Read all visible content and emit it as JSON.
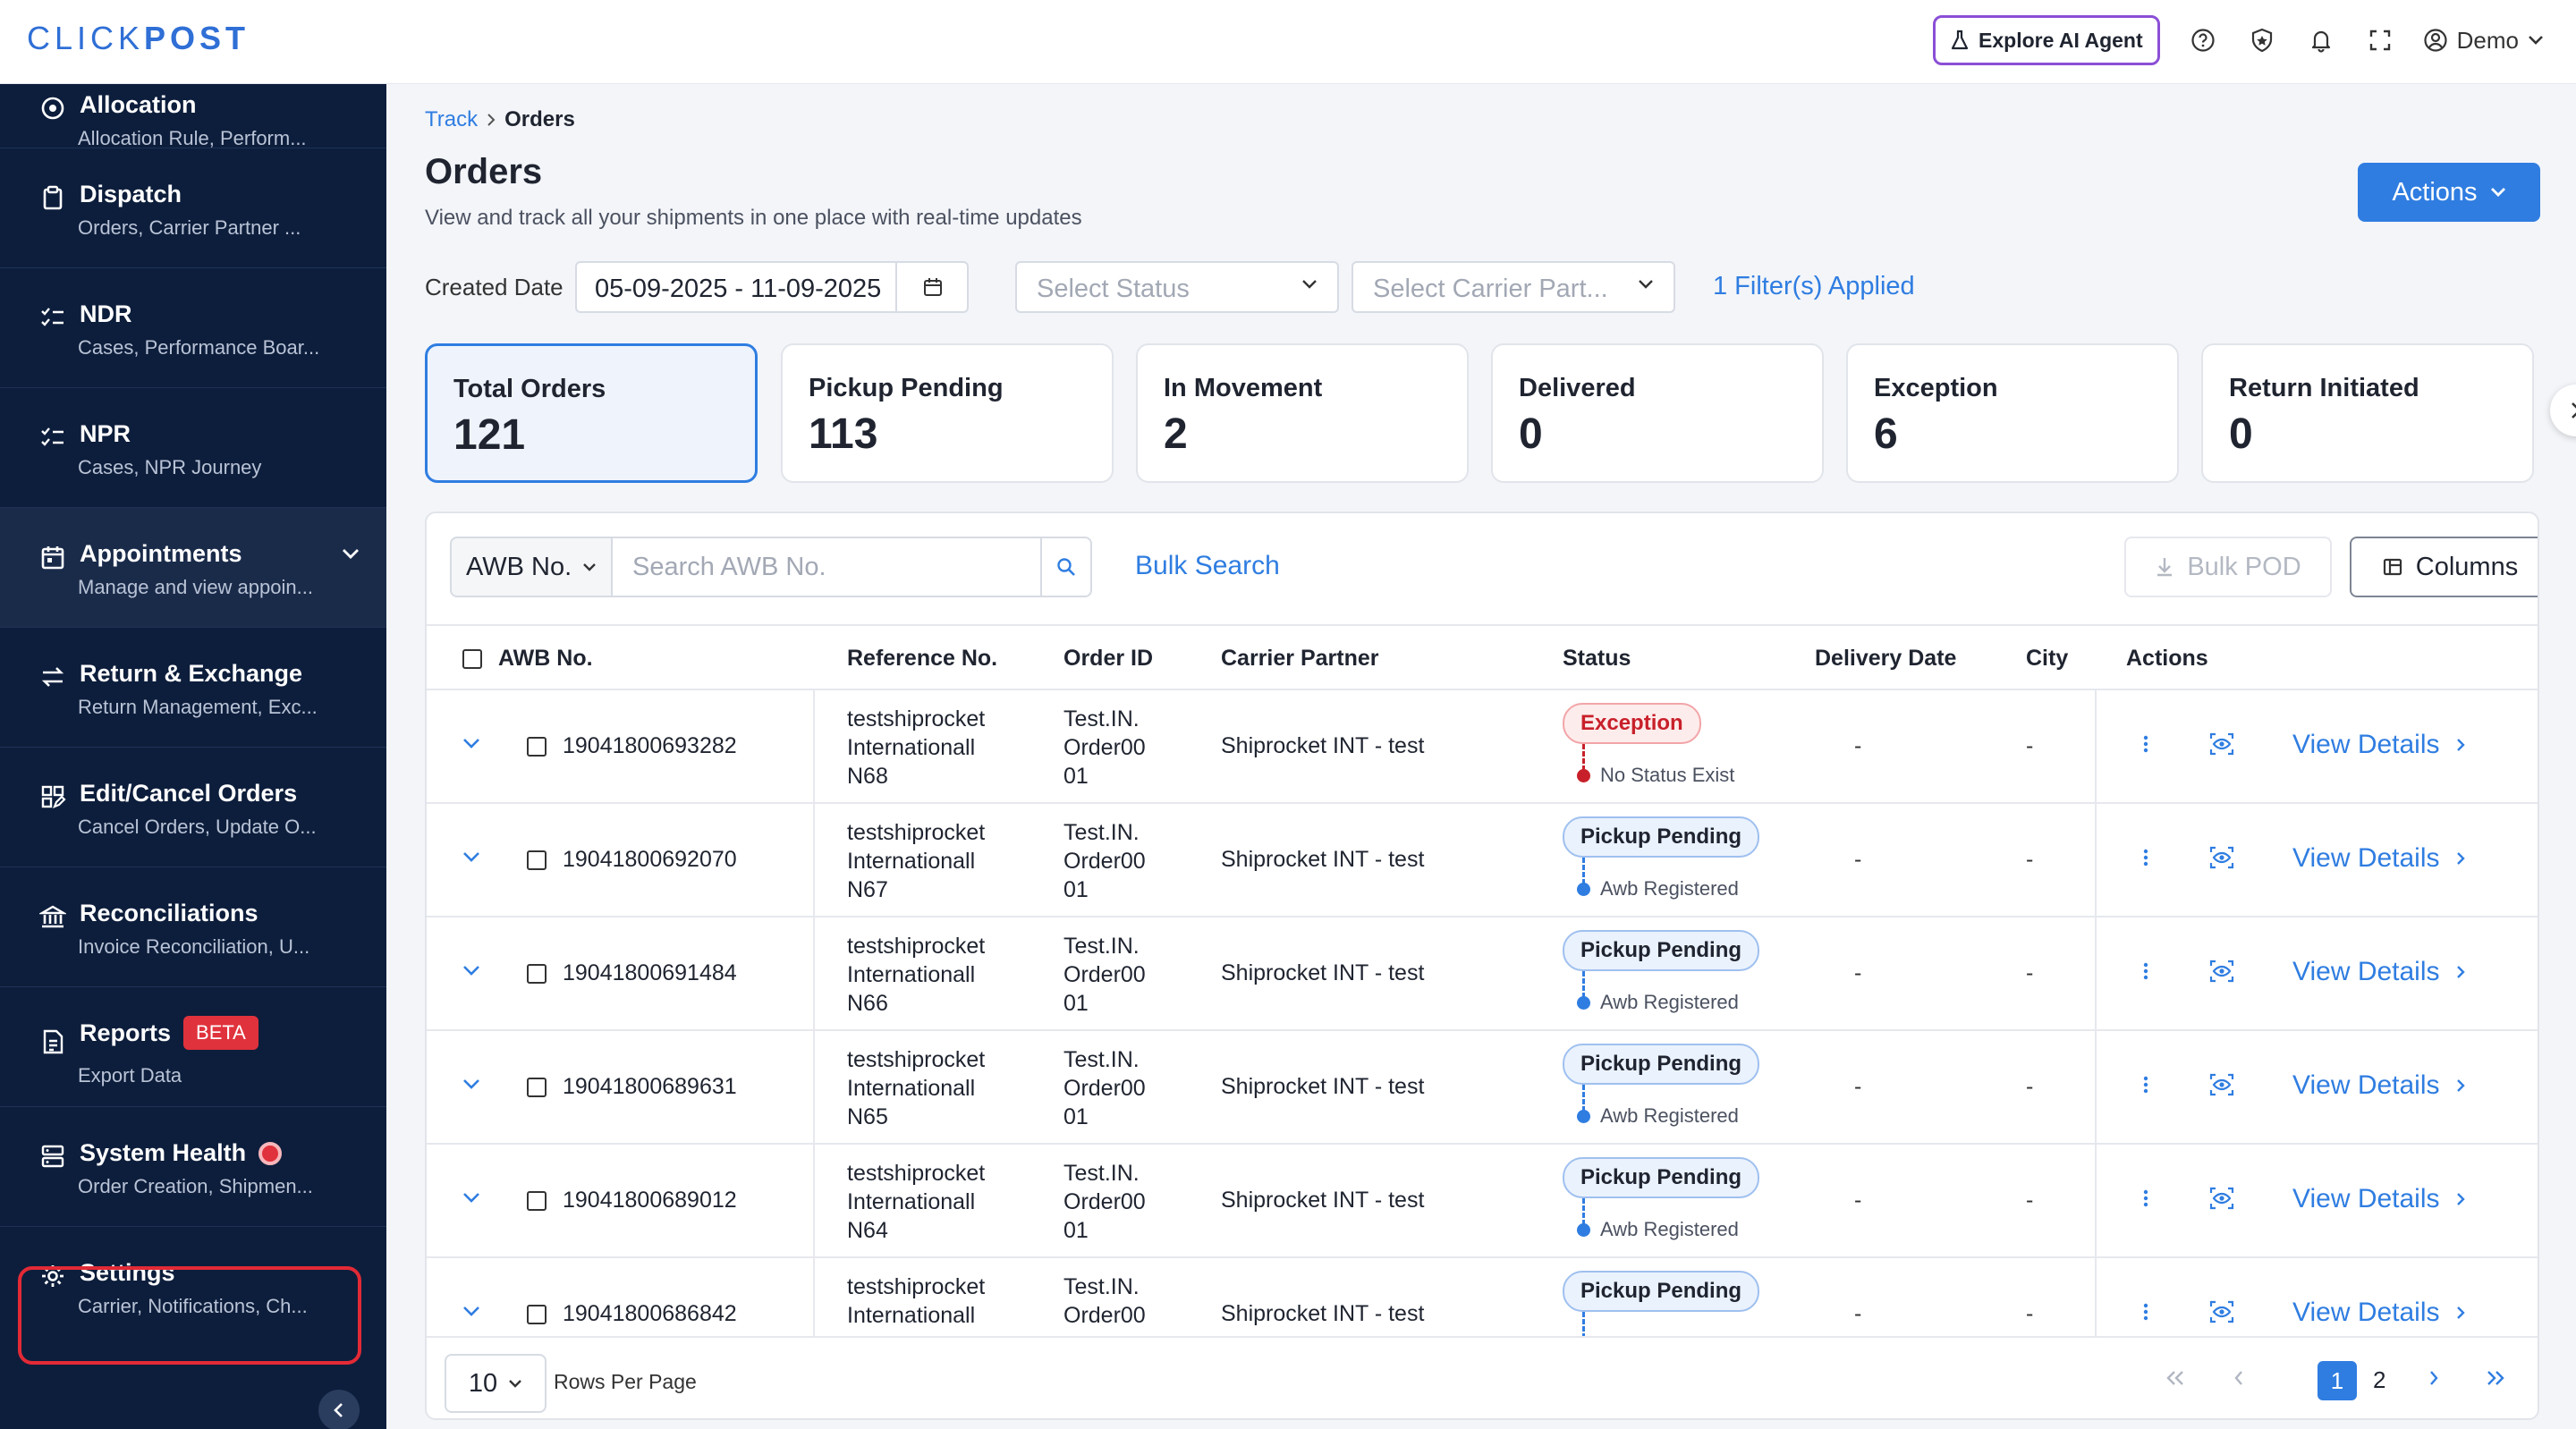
{
  "brand": {
    "logo_light": "CLICK",
    "logo_bold": "POST"
  },
  "topbar": {
    "ai_agent_label": "Explore AI Agent",
    "user_label": "Demo",
    "icons": [
      "help-icon",
      "shield-icon",
      "bell-icon",
      "fullscreen-icon",
      "user-circle-icon"
    ]
  },
  "sidebar": {
    "items": [
      {
        "title": "Allocation",
        "subtitle": "Allocation Rule, Perform...",
        "icon": "target-icon"
      },
      {
        "title": "Dispatch",
        "subtitle": "Orders, Carrier Partner ...",
        "icon": "clipboard-icon"
      },
      {
        "title": "NDR",
        "subtitle": "Cases, Performance Boar...",
        "icon": "list-check-icon"
      },
      {
        "title": "NPR",
        "subtitle": "Cases, NPR Journey",
        "icon": "list-check-icon"
      },
      {
        "title": "Appointments",
        "subtitle": "Manage and view appoin...",
        "icon": "calendar-icon"
      },
      {
        "title": "Return & Exchange",
        "subtitle": "Return Management, Exc...",
        "icon": "swap-icon"
      },
      {
        "title": "Edit/Cancel Orders",
        "subtitle": "Cancel Orders, Update O...",
        "icon": "edit-grid-icon"
      },
      {
        "title": "Reconciliations",
        "subtitle": "Invoice Reconciliation, U...",
        "icon": "bank-icon"
      },
      {
        "title": "Reports",
        "subtitle": "Export Data",
        "badge": "BETA",
        "icon": "report-icon"
      },
      {
        "title": "System Health",
        "subtitle": "Order Creation, Shipmen...",
        "icon": "server-icon"
      },
      {
        "title": "Settings",
        "subtitle": "Carrier, Notifications, Ch...",
        "icon": "gear-icon"
      }
    ]
  },
  "breadcrumb": {
    "parent": "Track",
    "current": "Orders"
  },
  "page": {
    "title": "Orders",
    "subtitle": "View and track all your shipments in one place with real-time updates",
    "actions_label": "Actions"
  },
  "filters": {
    "created_date_label": "Created Date",
    "date_range": "05-09-2025 - 11-09-2025",
    "status_placeholder": "Select Status",
    "carrier_placeholder": "Select Carrier Part...",
    "applied_text": "1 Filter(s) Applied"
  },
  "summary_cards": [
    {
      "label": "Total Orders",
      "value": "121"
    },
    {
      "label": "Pickup Pending",
      "value": "113"
    },
    {
      "label": "In Movement",
      "value": "2"
    },
    {
      "label": "Delivered",
      "value": "0"
    },
    {
      "label": "Exception",
      "value": "6"
    },
    {
      "label": "Return Initiated",
      "value": "0"
    }
  ],
  "search": {
    "field_label": "AWB No.",
    "placeholder": "Search AWB No.",
    "bulk_search_label": "Bulk Search",
    "bulk_pod_label": "Bulk POD",
    "columns_label": "Columns"
  },
  "table": {
    "headers": [
      "AWB No.",
      "Reference No.",
      "Order ID",
      "Carrier Partner",
      "Status",
      "Delivery Date",
      "City",
      "Actions"
    ],
    "view_details_label": "View Details",
    "rows": [
      {
        "awb": "19041800693282",
        "ref": [
          "testshiprocket",
          "Internationall",
          "N68"
        ],
        "order_id": [
          "Test.IN.",
          "Order00",
          "01"
        ],
        "carrier": "Shiprocket INT - test",
        "status": "Exception",
        "sub_status": "No Status Exist",
        "delivery_date": "-",
        "city": "-"
      },
      {
        "awb": "19041800692070",
        "ref": [
          "testshiprocket",
          "Internationall",
          "N67"
        ],
        "order_id": [
          "Test.IN.",
          "Order00",
          "01"
        ],
        "carrier": "Shiprocket INT - test",
        "status": "Pickup Pending",
        "sub_status": "Awb Registered",
        "delivery_date": "-",
        "city": "-"
      },
      {
        "awb": "19041800691484",
        "ref": [
          "testshiprocket",
          "Internationall",
          "N66"
        ],
        "order_id": [
          "Test.IN.",
          "Order00",
          "01"
        ],
        "carrier": "Shiprocket INT - test",
        "status": "Pickup Pending",
        "sub_status": "Awb Registered",
        "delivery_date": "-",
        "city": "-"
      },
      {
        "awb": "19041800689631",
        "ref": [
          "testshiprocket",
          "Internationall",
          "N65"
        ],
        "order_id": [
          "Test.IN.",
          "Order00",
          "01"
        ],
        "carrier": "Shiprocket INT - test",
        "status": "Pickup Pending",
        "sub_status": "Awb Registered",
        "delivery_date": "-",
        "city": "-"
      },
      {
        "awb": "19041800689012",
        "ref": [
          "testshiprocket",
          "Internationall",
          "N64"
        ],
        "order_id": [
          "Test.IN.",
          "Order00",
          "01"
        ],
        "carrier": "Shiprocket INT - test",
        "status": "Pickup Pending",
        "sub_status": "Awb Registered",
        "delivery_date": "-",
        "city": "-"
      },
      {
        "awb": "19041800686842",
        "ref": [
          "testshiprocket",
          "Internationall",
          ""
        ],
        "order_id": [
          "Test.IN.",
          "Order00",
          ""
        ],
        "carrier": "Shiprocket INT - test",
        "status": "Pickup Pending",
        "sub_status": "",
        "delivery_date": "-",
        "city": "-"
      }
    ]
  },
  "pagination": {
    "rows_per_page": "10",
    "rows_per_page_label": "Rows Per Page",
    "pages": [
      "1",
      "2"
    ],
    "current_page": "1"
  },
  "colors": {
    "accent": "#2f7de1",
    "sidebar_bg": "#0d1e3c",
    "danger": "#e0323c",
    "ai_border": "#8b4fd6"
  }
}
